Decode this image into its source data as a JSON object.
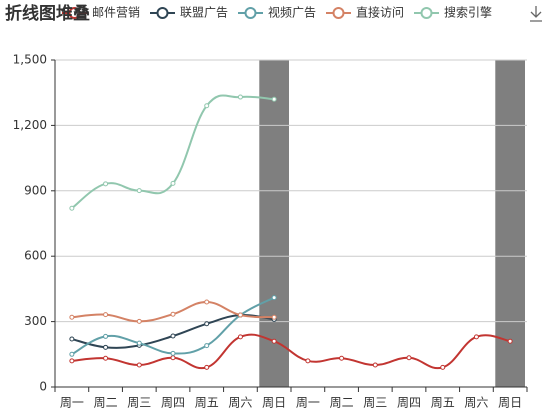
{
  "chart_data": {
    "type": "line",
    "title": "折线图堆叠",
    "categories": [
      "周一",
      "周二",
      "周三",
      "周四",
      "周五",
      "周六",
      "周日",
      "周一",
      "周二",
      "周三",
      "周四",
      "周五",
      "周六",
      "周日"
    ],
    "series": [
      {
        "name": "邮件营销",
        "color": "#c23531",
        "values": [
          120,
          132,
          101,
          134,
          90,
          230,
          210,
          120,
          132,
          101,
          134,
          90,
          230,
          210
        ]
      },
      {
        "name": "联盟广告",
        "color": "#2f4554",
        "values": [
          220,
          182,
          191,
          234,
          290,
          330,
          310,
          null,
          null,
          null,
          null,
          null,
          null,
          null
        ]
      },
      {
        "name": "视频广告",
        "color": "#61a0a8",
        "values": [
          150,
          232,
          201,
          154,
          190,
          330,
          410,
          null,
          null,
          null,
          null,
          null,
          null,
          null
        ]
      },
      {
        "name": "直接访问",
        "color": "#d48265",
        "values": [
          320,
          332,
          301,
          334,
          390,
          330,
          320,
          null,
          null,
          null,
          null,
          null,
          null,
          null
        ]
      },
      {
        "name": "搜索引擎",
        "color": "#91c7ae",
        "values": [
          820,
          932,
          901,
          934,
          1290,
          1330,
          1320,
          null,
          null,
          null,
          null,
          null,
          null,
          null
        ]
      }
    ],
    "ylim": [
      0,
      1500
    ],
    "yticks": [
      0,
      300,
      600,
      900,
      {
        "value": 1200,
        "label": "1,200"
      },
      {
        "value": 1500,
        "label": "1,500"
      }
    ],
    "grid": true
  }
}
